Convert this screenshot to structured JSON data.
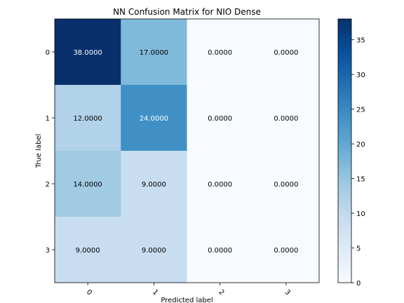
{
  "chart_data": {
    "type": "heatmap",
    "title": "NN Confusion Matrix for NIO Dense",
    "xlabel": "Predicted label",
    "ylabel": "True label",
    "x_categories": [
      "0",
      "1",
      "2",
      "3"
    ],
    "y_categories": [
      "0",
      "1",
      "2",
      "3"
    ],
    "matrix": [
      [
        38,
        17,
        0,
        0
      ],
      [
        12,
        24,
        0,
        0
      ],
      [
        14,
        9,
        0,
        0
      ],
      [
        9,
        9,
        0,
        0
      ]
    ],
    "cell_labels": [
      [
        "38.0000",
        "17.0000",
        "0.0000",
        "0.0000"
      ],
      [
        "12.0000",
        "24.0000",
        "0.0000",
        "0.0000"
      ],
      [
        "14.0000",
        "9.0000",
        "0.0000",
        "0.0000"
      ],
      [
        "9.0000",
        "9.0000",
        "0.0000",
        "0.0000"
      ]
    ],
    "colorbar": {
      "colormap": "Blues",
      "range": [
        0,
        38
      ],
      "ticks": [
        0,
        5,
        10,
        15,
        20,
        25,
        30,
        35
      ],
      "tick_labels": [
        "0",
        "5",
        "10",
        "15",
        "20",
        "25",
        "30",
        "35"
      ]
    },
    "x_tick_rotation_deg": 45,
    "grid": false
  }
}
